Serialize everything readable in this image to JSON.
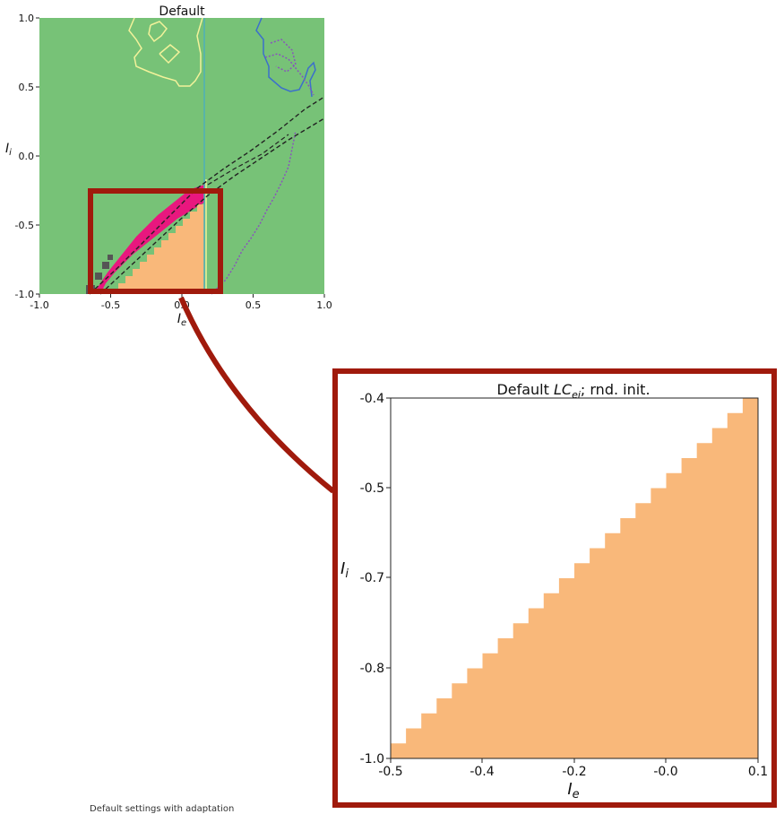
{
  "caption": "Default settings with adaptation",
  "colors": {
    "stable_region": "#77c277",
    "oscillatory_region": "#e8177e",
    "quiescent_region": "#f9b87a",
    "bistable_region": "#555555",
    "highlight_frame": "#a01a0c",
    "contour_yellow": "#f2f29a",
    "contour_teal": "#4fb0b8",
    "contour_blue": "#3b6fcc",
    "contour_purple": "#8855bb",
    "dashed_line": "#222222"
  },
  "chart_data": [
    {
      "type": "heatmap",
      "title": "Default",
      "xlabel": "I_e",
      "ylabel": "I_i",
      "xlim": [
        -1.0,
        1.0
      ],
      "ylim": [
        -1.0,
        1.0
      ],
      "xticks": [
        "-1.0",
        "-0.5",
        "0.0",
        "0.5",
        "1.0"
      ],
      "yticks": [
        "-1.0",
        "-0.5",
        "0.0",
        "0.5",
        "1.0"
      ],
      "regions": [
        {
          "name": "stable",
          "color": "#77c277"
        },
        {
          "name": "oscillatory band",
          "color": "#e8177e",
          "boundary_lower": [
            [
              -0.65,
              -1.0
            ],
            [
              0.2,
              -0.3
            ]
          ],
          "boundary_upper": [
            [
              -0.6,
              -0.75
            ],
            [
              0.15,
              -0.25
            ]
          ]
        },
        {
          "name": "quiescent triangle",
          "color": "#f9b87a",
          "polygon": [
            [
              -0.6,
              -1.0
            ],
            [
              0.18,
              -1.0
            ],
            [
              0.18,
              -0.32
            ]
          ]
        }
      ],
      "highlight_box": {
        "x": [
          -0.65,
          0.3
        ],
        "y": [
          -1.0,
          -0.25
        ]
      }
    },
    {
      "type": "heatmap",
      "title_prefix": "Default ",
      "title_italic": "LC",
      "title_sub": "ei",
      "title_suffix": "; rnd. init.",
      "xlabel": "I_e",
      "ylabel": "I_i",
      "xlim": [
        -0.5,
        0.1
      ],
      "ylim": [
        -1.0,
        -0.4
      ],
      "xticks": [
        "-0.5",
        "-0.4",
        "-0.2",
        "-0.0",
        "0.1"
      ],
      "yticks": [
        "-1.0",
        "-0.8",
        "-0.7",
        "-0.5",
        "-0.4"
      ],
      "staircase_boundary": {
        "x": [
          -0.5,
          -0.475,
          -0.45,
          -0.425,
          -0.4,
          -0.375,
          -0.35,
          -0.325,
          -0.3,
          -0.275,
          -0.25,
          -0.225,
          -0.2,
          -0.175,
          -0.15,
          -0.125,
          -0.1,
          -0.075,
          -0.05,
          -0.025,
          0.0,
          0.025,
          0.05,
          0.075,
          0.1
        ],
        "y_top": [
          -0.975,
          -0.95,
          -0.925,
          -0.9,
          -0.875,
          -0.85,
          -0.825,
          -0.8,
          -0.775,
          -0.75,
          -0.725,
          -0.7,
          -0.675,
          -0.65,
          -0.625,
          -0.6,
          -0.575,
          -0.55,
          -0.525,
          -0.5,
          -0.475,
          -0.45,
          -0.425,
          -0.4,
          -0.4
        ]
      },
      "fill_color": "#f9b87a"
    }
  ]
}
